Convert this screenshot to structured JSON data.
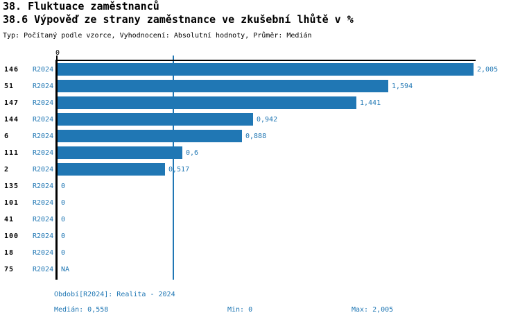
{
  "header": {
    "title": "38. Fluktuace zaměstnanců",
    "subtitle": "38.6 Výpověď ze strany zaměstnance ve zkušební lhůtě v %",
    "meta": "Typ: Počítaný podle vzorce, Vyhodnocení: Absolutní hodnoty, Průměr: Medián"
  },
  "axis": {
    "zero_tick": "0"
  },
  "rows": [
    {
      "id": "146",
      "period": "R2024",
      "value": 2.005,
      "label": "2,005"
    },
    {
      "id": "51",
      "period": "R2024",
      "value": 1.594,
      "label": "1,594"
    },
    {
      "id": "147",
      "period": "R2024",
      "value": 1.441,
      "label": "1,441"
    },
    {
      "id": "144",
      "period": "R2024",
      "value": 0.942,
      "label": "0,942"
    },
    {
      "id": "6",
      "period": "R2024",
      "value": 0.888,
      "label": "0,888"
    },
    {
      "id": "111",
      "period": "R2024",
      "value": 0.6,
      "label": "0,6"
    },
    {
      "id": "2",
      "period": "R2024",
      "value": 0.517,
      "label": "0,517"
    },
    {
      "id": "135",
      "period": "R2024",
      "value": 0,
      "label": "0"
    },
    {
      "id": "101",
      "period": "R2024",
      "value": 0,
      "label": "0"
    },
    {
      "id": "41",
      "period": "R2024",
      "value": 0,
      "label": "0"
    },
    {
      "id": "100",
      "period": "R2024",
      "value": 0,
      "label": "0"
    },
    {
      "id": "18",
      "period": "R2024",
      "value": 0,
      "label": "0"
    },
    {
      "id": "75",
      "period": "R2024",
      "value": null,
      "label": "NA"
    }
  ],
  "footer": {
    "period": "Období[R2024]: Realita - 2024",
    "median": "Medián: 0,558",
    "min": "Min: 0",
    "max": "Max: 2,005"
  },
  "colors": {
    "bar": "#2077b4",
    "blue_text": "#2077b4",
    "median_line": "#2077b4",
    "axis": "#000000"
  },
  "chart_data": {
    "type": "bar",
    "orientation": "horizontal",
    "title": "38. Fluktuace zaměstnanců",
    "subtitle": "38.6 Výpověď ze strany zaměstnance ve zkušební lhůtě v %",
    "categories": [
      "146",
      "51",
      "147",
      "144",
      "6",
      "111",
      "2",
      "135",
      "101",
      "41",
      "100",
      "18",
      "75"
    ],
    "series": [
      {
        "name": "R2024",
        "values": [
          2.005,
          1.594,
          1.441,
          0.942,
          0.888,
          0.6,
          0.517,
          0,
          0,
          0,
          0,
          0,
          null
        ]
      }
    ],
    "value_labels": [
      "2,005",
      "1,594",
      "1,441",
      "0,942",
      "0,888",
      "0,6",
      "0,517",
      "0",
      "0",
      "0",
      "0",
      "0",
      "NA"
    ],
    "xlabel": "",
    "ylabel": "",
    "xlim": [
      0,
      2.005
    ],
    "x_ticks": [
      0
    ],
    "grid": false,
    "legend_position": "none",
    "median": 0.558,
    "min": 0,
    "max": 2.005
  }
}
